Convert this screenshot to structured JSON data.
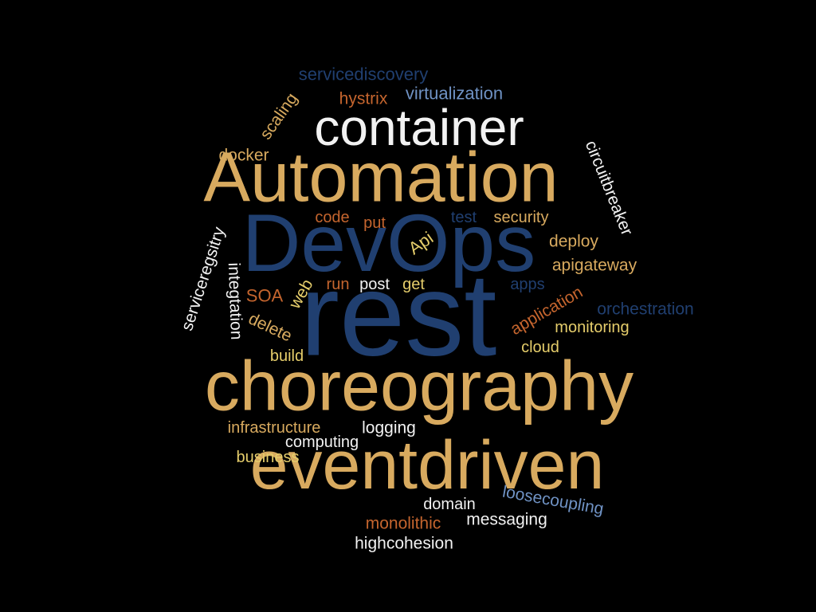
{
  "palette": {
    "background": "#000000",
    "gold": "#d8aa5f",
    "navy": "#203f70",
    "white": "#f2f2f2",
    "orange": "#c5652e",
    "yellow": "#e5cd6b",
    "steelblue": "#6f92c4"
  },
  "words": [
    {
      "text": "rest",
      "color": "navy"
    },
    {
      "text": "DevOps",
      "color": "navy"
    },
    {
      "text": "Automation",
      "color": "gold"
    },
    {
      "text": "choreography",
      "color": "gold"
    },
    {
      "text": "eventdriven",
      "color": "gold"
    },
    {
      "text": "container",
      "color": "white"
    },
    {
      "text": "servicediscovery",
      "color": "navy"
    },
    {
      "text": "virtualization",
      "color": "steelblue"
    },
    {
      "text": "hystrix",
      "color": "orange"
    },
    {
      "text": "scaling",
      "color": "gold"
    },
    {
      "text": "docker",
      "color": "gold"
    },
    {
      "text": "circuitbreaker",
      "color": "white"
    },
    {
      "text": "code",
      "color": "orange"
    },
    {
      "text": "put",
      "color": "orange"
    },
    {
      "text": "test",
      "color": "navy"
    },
    {
      "text": "security",
      "color": "gold"
    },
    {
      "text": "Api",
      "color": "yellow"
    },
    {
      "text": "deploy",
      "color": "gold"
    },
    {
      "text": "apigateway",
      "color": "gold"
    },
    {
      "text": "serviceregsitry",
      "color": "white"
    },
    {
      "text": "integtation",
      "color": "white"
    },
    {
      "text": "SOA",
      "color": "orange"
    },
    {
      "text": "web",
      "color": "yellow"
    },
    {
      "text": "run",
      "color": "orange"
    },
    {
      "text": "post",
      "color": "white"
    },
    {
      "text": "get",
      "color": "yellow"
    },
    {
      "text": "apps",
      "color": "navy"
    },
    {
      "text": "application",
      "color": "orange"
    },
    {
      "text": "orchestration",
      "color": "navy"
    },
    {
      "text": "monitoring",
      "color": "yellow"
    },
    {
      "text": "delete",
      "color": "gold"
    },
    {
      "text": "build",
      "color": "yellow"
    },
    {
      "text": "cloud",
      "color": "yellow"
    },
    {
      "text": "infrastructure",
      "color": "gold"
    },
    {
      "text": "logging",
      "color": "white"
    },
    {
      "text": "computing",
      "color": "white"
    },
    {
      "text": "business",
      "color": "yellow"
    },
    {
      "text": "loosecoupling",
      "color": "steelblue"
    },
    {
      "text": "domain",
      "color": "white"
    },
    {
      "text": "monolithic",
      "color": "orange"
    },
    {
      "text": "messaging",
      "color": "white"
    },
    {
      "text": "highcohesion",
      "color": "white"
    }
  ]
}
